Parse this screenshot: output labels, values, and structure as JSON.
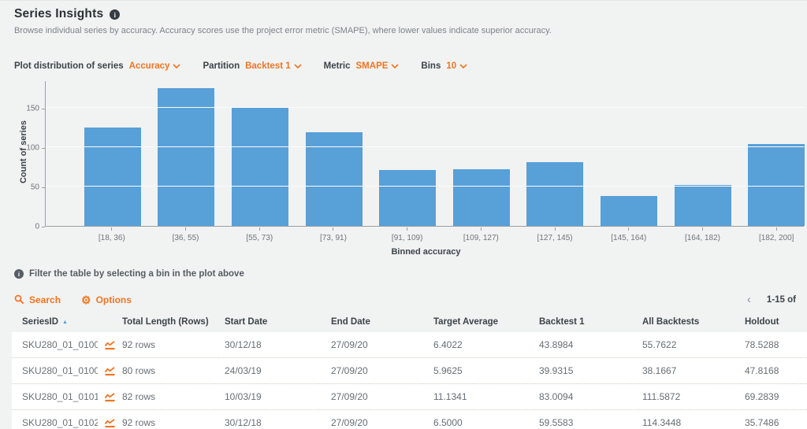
{
  "colors": {
    "background": "#f1f2f2",
    "accent_orange": "#ee7623",
    "bar_blue": "#58a0d8",
    "sorted_header_blue": "#5f9bd3",
    "text_dark": "#3c434a",
    "text_gray": "#7d848a"
  },
  "icons": {
    "info": "i",
    "sort_asc": "▲",
    "prev_page": "‹",
    "gear": "⚙"
  },
  "header": {
    "title": "Series Insights",
    "subtitle": "Browse individual series by accuracy. Accuracy scores use the project error metric (SMAPE), where lower values indicate superior accuracy."
  },
  "controls": [
    {
      "label": "Plot distribution of series",
      "value": "Accuracy"
    },
    {
      "label": "Partition",
      "value": "Backtest 1"
    },
    {
      "label": "Metric",
      "value": "SMAPE"
    },
    {
      "label": "Bins",
      "value": "10"
    }
  ],
  "chart_data": {
    "type": "bar",
    "title": "",
    "categories": [
      "[18, 36)",
      "[36, 55)",
      "[55, 73)",
      "[73, 91)",
      "[91, 109)",
      "[109, 127)",
      "[127, 145)",
      "[145, 164)",
      "[164, 182)",
      "[182, 200]"
    ],
    "values": [
      126,
      176,
      151,
      120,
      71,
      72,
      81,
      38,
      52,
      105
    ],
    "xlabel": "Binned accuracy",
    "ylabel": "Count of series",
    "ylim": [
      0,
      185
    ],
    "yticks": [
      0,
      50,
      100,
      150
    ],
    "grid": true,
    "legend": false,
    "bar_color": "#58a0d8"
  },
  "hint": "Filter the table by selecting a bin in the plot above",
  "toolbar": {
    "search_label": "Search",
    "options_label": "Options",
    "pagination_range": "1-15 of"
  },
  "table": {
    "columns": [
      "SeriesID",
      "Total Length (Rows)",
      "Start Date",
      "End Date",
      "Target Average",
      "Backtest 1",
      "All Backtests",
      "Holdout"
    ],
    "sort": {
      "column": "SeriesID",
      "direction": "asc"
    },
    "rows": [
      {
        "series_id": "SKU280_01_0100...",
        "total_length": "92 rows",
        "start_date": "30/12/18",
        "end_date": "27/09/20",
        "target_average": "6.4022",
        "backtest_1": "43.8984",
        "all_backtests": "55.7622",
        "holdout": "78.5288"
      },
      {
        "series_id": "SKU280_01_0100...",
        "total_length": "80 rows",
        "start_date": "24/03/19",
        "end_date": "27/09/20",
        "target_average": "5.9625",
        "backtest_1": "39.9315",
        "all_backtests": "38.1667",
        "holdout": "47.8168"
      },
      {
        "series_id": "SKU280_01_0101...",
        "total_length": "82 rows",
        "start_date": "10/03/19",
        "end_date": "27/09/20",
        "target_average": "11.1341",
        "backtest_1": "83.0094",
        "all_backtests": "111.5872",
        "holdout": "69.2839"
      },
      {
        "series_id": "SKU280_01_0102...",
        "total_length": "92 rows",
        "start_date": "30/12/18",
        "end_date": "27/09/20",
        "target_average": "6.5000",
        "backtest_1": "59.5583",
        "all_backtests": "114.3448",
        "holdout": "35.7486"
      }
    ]
  }
}
